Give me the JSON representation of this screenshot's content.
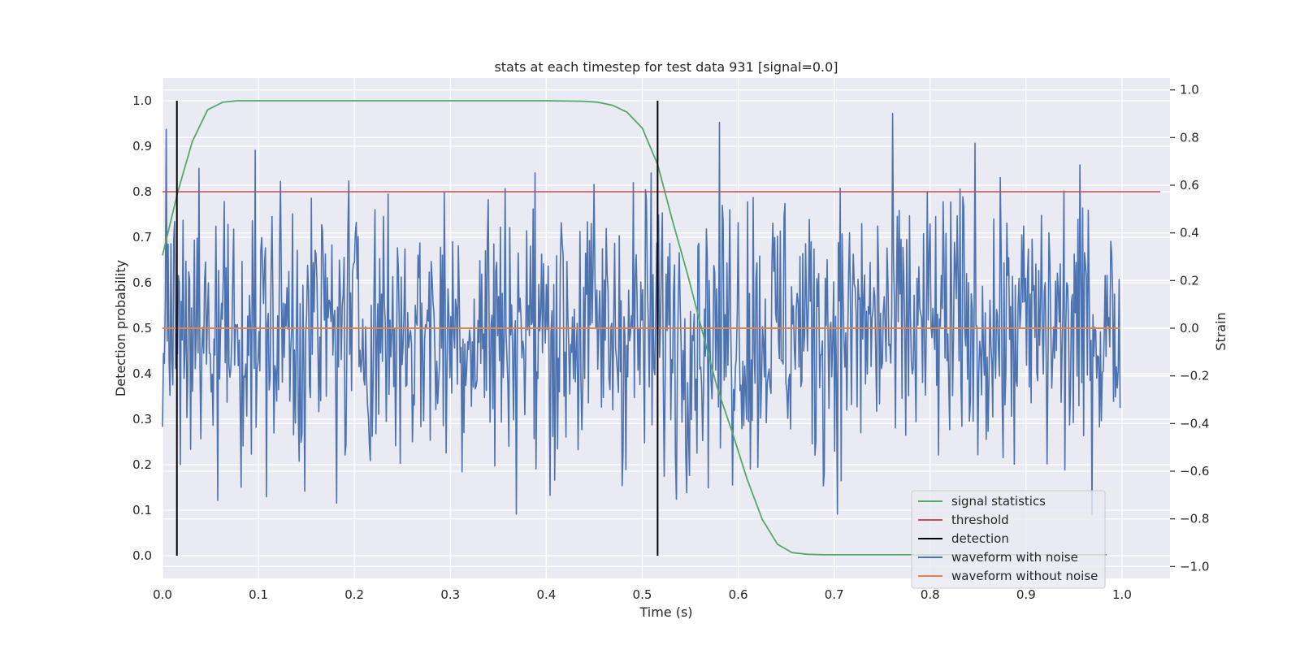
{
  "chart_data": {
    "type": "line",
    "title": "stats at each timestep for test data 931 [signal=0.0]",
    "xlabel": "Time (s)",
    "ylabel_left": "Detection probability",
    "ylabel_right": "Strain",
    "xlim": [
      0.0,
      1.05
    ],
    "ylim_left": [
      -0.05,
      1.05
    ],
    "ylim_right": [
      -1.05,
      1.05
    ],
    "x_ticks": [
      "0.0",
      "0.1",
      "0.2",
      "0.3",
      "0.4",
      "0.5",
      "0.6",
      "0.7",
      "0.8",
      "0.9",
      "1.0"
    ],
    "y_ticks_left": [
      "0.0",
      "0.1",
      "0.2",
      "0.3",
      "0.4",
      "0.5",
      "0.6",
      "0.7",
      "0.8",
      "0.9",
      "1.0"
    ],
    "y_ticks_right": [
      "−1.0",
      "−0.8",
      "−0.6",
      "−0.4",
      "−0.2",
      "0.0",
      "0.2",
      "0.4",
      "0.6",
      "0.8",
      "1.0"
    ],
    "grid": true,
    "legend_position": "lower-right",
    "series": [
      {
        "name": "signal statistics",
        "color": "#55a868",
        "axis": "left",
        "x": [
          0.0,
          0.016,
          0.031,
          0.047,
          0.063,
          0.078,
          0.094,
          0.2,
          0.3,
          0.4,
          0.438,
          0.453,
          0.469,
          0.484,
          0.5,
          0.516,
          0.531,
          0.547,
          0.563,
          0.578,
          0.594,
          0.609,
          0.625,
          0.641,
          0.656,
          0.672,
          0.688,
          0.7,
          0.8,
          0.9,
          0.984
        ],
        "y": [
          0.66,
          0.8,
          0.91,
          0.98,
          0.997,
          1.0,
          1.0,
          1.0,
          1.0,
          1.0,
          0.999,
          0.997,
          0.99,
          0.975,
          0.94,
          0.86,
          0.74,
          0.62,
          0.49,
          0.37,
          0.27,
          0.17,
          0.08,
          0.025,
          0.007,
          0.003,
          0.002,
          0.002,
          0.002,
          0.002,
          0.002
        ]
      },
      {
        "name": "threshold",
        "color": "#c44e52",
        "axis": "left",
        "x": [
          0.0,
          1.04
        ],
        "y": [
          0.8,
          0.8
        ]
      },
      {
        "name": "detection",
        "color": "#000000",
        "axis": "left",
        "type": "vlines",
        "x": [
          0.015,
          0.516
        ],
        "ymin": 0.0,
        "ymax": 1.0
      },
      {
        "name": "waveform with noise",
        "color": "#4c72b0",
        "axis": "right",
        "x_start": 0.0,
        "x_end": 0.998,
        "samples": 1024,
        "amplitude": 0.3,
        "max_value": 1.0,
        "min_value": -0.78
      },
      {
        "name": "waveform without noise",
        "color": "#dd8452",
        "axis": "right",
        "x": [
          0.0,
          0.998
        ],
        "y": [
          0.0,
          0.0
        ]
      }
    ]
  }
}
